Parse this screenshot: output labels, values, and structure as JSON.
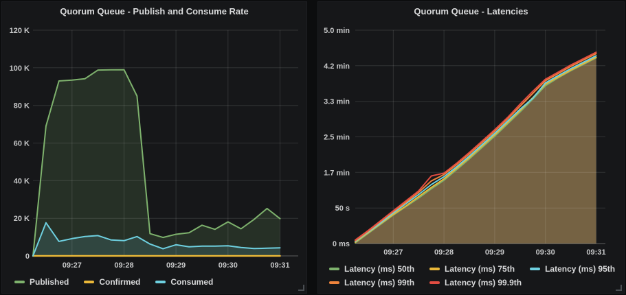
{
  "page": {
    "background": "#0c0d0e",
    "panel_background": "#161719",
    "grid_color": "rgba(255,255,255,0.12)",
    "axis_color": "rgba(255,255,255,0.22)",
    "text_color": "#d8d9da",
    "tick_color": "#c8c9ca"
  },
  "chart_data": [
    {
      "type": "area",
      "title": "Quorum Queue - Publish and Consume Rate",
      "xlabel": "",
      "ylabel": "",
      "grid": true,
      "legend_position": "bottom",
      "y_max": 120,
      "y_unit": "K",
      "x_start": "09:26:15",
      "x_end": "09:31:21",
      "x_times": [
        "09:26:15",
        "09:26:30",
        "09:26:45",
        "09:27:00",
        "09:27:15",
        "09:27:30",
        "09:27:45",
        "09:28:00",
        "09:28:15",
        "09:28:30",
        "09:28:45",
        "09:29:00",
        "09:29:15",
        "09:29:30",
        "09:29:45",
        "09:30:00",
        "09:30:15",
        "09:30:30",
        "09:30:45",
        "09:31:00"
      ],
      "x_ticks": [
        {
          "t": "09:27:00",
          "label": "09:27"
        },
        {
          "t": "09:28:00",
          "label": "09:28"
        },
        {
          "t": "09:29:00",
          "label": "09:29"
        },
        {
          "t": "09:30:00",
          "label": "09:30"
        },
        {
          "t": "09:31:00",
          "label": "09:31"
        }
      ],
      "y_ticks": [
        {
          "v": 0,
          "label": "0"
        },
        {
          "v": 20,
          "label": "20 K"
        },
        {
          "v": 40,
          "label": "40 K"
        },
        {
          "v": 60,
          "label": "60 K"
        },
        {
          "v": 80,
          "label": "80 K"
        },
        {
          "v": 100,
          "label": "100 K"
        },
        {
          "v": 120,
          "label": "120 K"
        }
      ],
      "series": [
        {
          "key": "published",
          "name": "Published",
          "color": "#7EB26D",
          "width": 2,
          "fill": "rgba(126,178,109,0.16)",
          "values": [
            0,
            69,
            93,
            93.5,
            94.2,
            98.8,
            98.9,
            99,
            85,
            11.8,
            9.8,
            11.5,
            12.3,
            16.3,
            14.1,
            18.1,
            14.4,
            19.4,
            25.2,
            19.8
          ]
        },
        {
          "key": "confirmed",
          "name": "Confirmed",
          "color": "#EAB839",
          "width": 2.5,
          "fill": null,
          "values": [
            0,
            0,
            0,
            0,
            0,
            0,
            0,
            0,
            0,
            0,
            0,
            0,
            0,
            0,
            0,
            0,
            0,
            0,
            0,
            0
          ]
        },
        {
          "key": "consumed",
          "name": "Consumed",
          "color": "#6ED0E0",
          "width": 2,
          "fill": "rgba(110,208,224,0.14)",
          "values": [
            0,
            17.6,
            7.7,
            9.2,
            10.3,
            10.8,
            8.5,
            8.1,
            10.3,
            6.3,
            3.8,
            5.9,
            4.8,
            5.2,
            5.2,
            5.4,
            4.5,
            3.9,
            4.1,
            4.3
          ]
        }
      ],
      "legend_rows": [
        [
          "Published",
          "Confirmed",
          "Consumed"
        ]
      ]
    },
    {
      "type": "area",
      "title": "Quorum Queue - Latencies",
      "xlabel": "",
      "ylabel": "",
      "grid": true,
      "legend_position": "bottom",
      "y_max": 300,
      "y_unit": "seconds",
      "x_start": "09:26:15",
      "x_end": "09:31:11",
      "x_times": [
        "09:26:15",
        "09:26:30",
        "09:26:45",
        "09:27:00",
        "09:27:15",
        "09:27:30",
        "09:27:45",
        "09:28:00",
        "09:28:15",
        "09:28:30",
        "09:28:45",
        "09:29:00",
        "09:29:15",
        "09:29:30",
        "09:29:45",
        "09:30:00",
        "09:30:15",
        "09:30:30",
        "09:30:45",
        "09:31:00"
      ],
      "x_ticks": [
        {
          "t": "09:27:00",
          "label": "09:27"
        },
        {
          "t": "09:28:00",
          "label": "09:28"
        },
        {
          "t": "09:29:00",
          "label": "09:29"
        },
        {
          "t": "09:30:00",
          "label": "09:30"
        },
        {
          "t": "09:31:00",
          "label": "09:31"
        }
      ],
      "y_ticks": [
        {
          "v": 0,
          "label": "0 ms"
        },
        {
          "v": 50,
          "label": "50 s"
        },
        {
          "v": 100,
          "label": "1.7 min"
        },
        {
          "v": 150,
          "label": "2.5 min"
        },
        {
          "v": 200,
          "label": "3.3 min"
        },
        {
          "v": 250,
          "label": "4.2 min"
        },
        {
          "v": 300,
          "label": "5.0 min"
        }
      ],
      "series": [
        {
          "key": "p50",
          "name": "Latency (ms) 50th",
          "color": "#7EB26D",
          "width": 2,
          "fill": "rgba(186,154,99,0.58)",
          "values": [
            1,
            14,
            27,
            40,
            52,
            64,
            77,
            89,
            104,
            119,
            135,
            151,
            168,
            185,
            203,
            222,
            233,
            243,
            252,
            261
          ]
        },
        {
          "key": "p75",
          "name": "Latency (ms) 75th",
          "color": "#EAB839",
          "width": 2,
          "fill": null,
          "values": [
            2,
            15,
            28,
            41,
            53,
            66,
            79,
            91,
            106,
            121,
            137,
            153,
            170,
            187,
            205,
            224,
            234,
            244,
            253,
            262
          ]
        },
        {
          "key": "p95",
          "name": "Latency (ms) 95th",
          "color": "#6ED0E0",
          "width": 2,
          "fill": null,
          "values": [
            3,
            16,
            29,
            43,
            56,
            69,
            83,
            94,
            108,
            123,
            139,
            155,
            172,
            189,
            204,
            226,
            236,
            246,
            255,
            264
          ]
        },
        {
          "key": "p99",
          "name": "Latency (ms) 99th",
          "color": "#EF843C",
          "width": 2,
          "fill": null,
          "values": [
            4,
            17,
            31,
            45,
            58,
            72,
            88,
            97,
            111,
            126,
            142,
            158,
            175,
            193,
            211,
            229,
            239,
            249,
            258,
            267
          ]
        },
        {
          "key": "p999",
          "name": "Latency (ms) 99.9th",
          "color": "#E24D42",
          "width": 2,
          "fill": null,
          "values": [
            5,
            18,
            32,
            46,
            60,
            74,
            95,
            99,
            113,
            128,
            144,
            160,
            177,
            196,
            214,
            231,
            241,
            251,
            260,
            269
          ]
        }
      ],
      "legend_rows": [
        [
          "Latency (ms) 50th",
          "Latency (ms) 75th",
          "Latency (ms) 95th"
        ],
        [
          "Latency (ms) 99th",
          "Latency (ms) 99.9th"
        ]
      ]
    }
  ]
}
